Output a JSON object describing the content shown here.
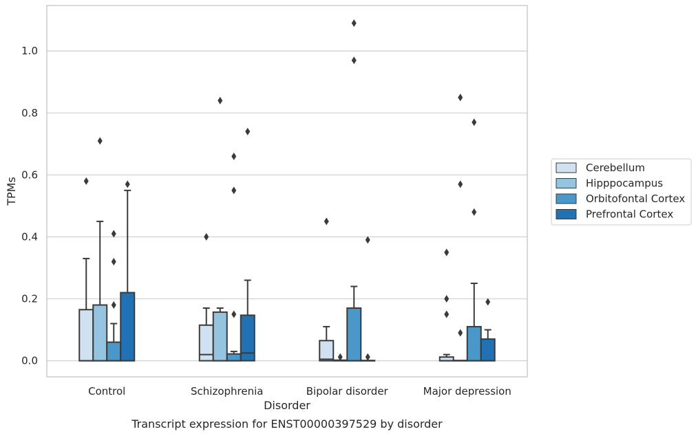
{
  "chart_data": {
    "type": "box",
    "title": "",
    "caption": "Transcript expression for ENST00000397529 by disorder",
    "xlabel": "Disorder",
    "ylabel": "TPMs",
    "ylim": [
      -0.052,
      1.147
    ],
    "yticks": [
      0.0,
      0.2,
      0.4,
      0.6,
      0.8,
      1.0
    ],
    "ytick_labels": [
      "0.0",
      "0.2",
      "0.4",
      "0.6",
      "0.8",
      "1.0"
    ],
    "grid": "horizontal",
    "legend_position": "right",
    "categories": [
      "Control",
      "Schizophrenia",
      "Bipolar disorder",
      "Major depression"
    ],
    "series": [
      {
        "name": "Cerebellum",
        "color": "#d0e1f2",
        "boxes": [
          {
            "q1": 0.0,
            "median": 0.0,
            "q3": 0.165,
            "whisker_low": 0.0,
            "whisker_high": 0.33,
            "outliers": [
              0.58
            ]
          },
          {
            "q1": 0.0,
            "median": 0.02,
            "q3": 0.115,
            "whisker_low": 0.0,
            "whisker_high": 0.17,
            "outliers": [
              0.4
            ]
          },
          {
            "q1": 0.0,
            "median": 0.005,
            "q3": 0.065,
            "whisker_low": 0.0,
            "whisker_high": 0.11,
            "outliers": [
              0.45
            ]
          },
          {
            "q1": 0.0,
            "median": 0.0,
            "q3": 0.012,
            "whisker_low": 0.0,
            "whisker_high": 0.02,
            "outliers": [
              0.15,
              0.2,
              0.35
            ]
          }
        ]
      },
      {
        "name": "Hipppocampus",
        "color": "#94c4df",
        "boxes": [
          {
            "q1": 0.0,
            "median": 0.0,
            "q3": 0.18,
            "whisker_low": 0.0,
            "whisker_high": 0.45,
            "outliers": [
              0.71
            ]
          },
          {
            "q1": 0.0,
            "median": 0.0,
            "q3": 0.157,
            "whisker_low": 0.0,
            "whisker_high": 0.17,
            "outliers": [
              0.84
            ]
          },
          {
            "q1": 0.0,
            "median": 0.0,
            "q3": 0.002,
            "whisker_low": 0.0,
            "whisker_high": 0.002,
            "outliers": [
              0.012
            ]
          },
          {
            "q1": 0.0,
            "median": 0.0,
            "q3": 0.001,
            "whisker_low": 0.0,
            "whisker_high": 0.001,
            "outliers": [
              0.09,
              0.57,
              0.85
            ]
          }
        ]
      },
      {
        "name": "Orbitofontal Cortex",
        "color": "#4a98c9",
        "boxes": [
          {
            "q1": 0.0,
            "median": 0.0,
            "q3": 0.06,
            "whisker_low": 0.0,
            "whisker_high": 0.12,
            "outliers": [
              0.18,
              0.32,
              0.41
            ]
          },
          {
            "q1": 0.0,
            "median": 0.0,
            "q3": 0.022,
            "whisker_low": 0.0,
            "whisker_high": 0.03,
            "outliers": [
              0.15,
              0.55,
              0.66
            ]
          },
          {
            "q1": 0.0,
            "median": 0.0,
            "q3": 0.17,
            "whisker_low": 0.0,
            "whisker_high": 0.24,
            "outliers": [
              0.97,
              1.09
            ]
          },
          {
            "q1": 0.0,
            "median": 0.0,
            "q3": 0.11,
            "whisker_low": 0.0,
            "whisker_high": 0.25,
            "outliers": [
              0.48,
              0.77
            ]
          }
        ]
      },
      {
        "name": "Prefrontal Cortex",
        "color": "#2171b5",
        "boxes": [
          {
            "q1": 0.0,
            "median": 0.0,
            "q3": 0.22,
            "whisker_low": 0.0,
            "whisker_high": 0.55,
            "outliers": [
              0.57
            ]
          },
          {
            "q1": 0.0,
            "median": 0.025,
            "q3": 0.147,
            "whisker_low": 0.0,
            "whisker_high": 0.26,
            "outliers": [
              0.74
            ]
          },
          {
            "q1": 0.0,
            "median": 0.0,
            "q3": 0.001,
            "whisker_low": 0.0,
            "whisker_high": 0.001,
            "outliers": [
              0.012,
              0.39
            ]
          },
          {
            "q1": 0.0,
            "median": 0.0,
            "q3": 0.07,
            "whisker_low": 0.0,
            "whisker_high": 0.1,
            "outliers": [
              0.19
            ]
          }
        ]
      }
    ]
  }
}
